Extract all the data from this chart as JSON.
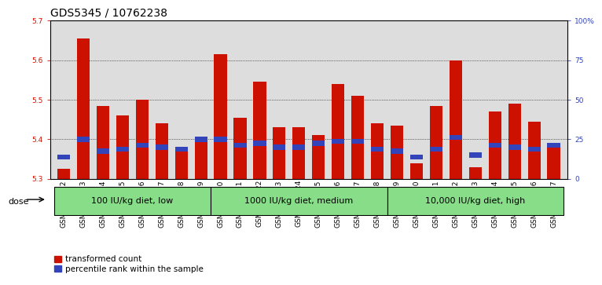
{
  "title": "GDS5345 / 10762238",
  "samples": [
    "GSM1502412",
    "GSM1502413",
    "GSM1502414",
    "GSM1502415",
    "GSM1502416",
    "GSM1502417",
    "GSM1502418",
    "GSM1502419",
    "GSM1502420",
    "GSM1502421",
    "GSM1502422",
    "GSM1502423",
    "GSM1502424",
    "GSM1502425",
    "GSM1502426",
    "GSM1502427",
    "GSM1502428",
    "GSM1502429",
    "GSM1502430",
    "GSM1502431",
    "GSM1502432",
    "GSM1502433",
    "GSM1502434",
    "GSM1502435",
    "GSM1502436",
    "GSM1502437"
  ],
  "red_values": [
    5.325,
    5.655,
    5.485,
    5.46,
    5.5,
    5.44,
    5.38,
    5.395,
    5.615,
    5.455,
    5.545,
    5.43,
    5.43,
    5.41,
    5.54,
    5.51,
    5.44,
    5.435,
    5.34,
    5.485,
    5.6,
    5.33,
    5.47,
    5.49,
    5.445,
    5.385
  ],
  "blue_values": [
    5.355,
    5.4,
    5.37,
    5.375,
    5.385,
    5.38,
    5.375,
    5.4,
    5.4,
    5.385,
    5.39,
    5.38,
    5.38,
    5.39,
    5.395,
    5.395,
    5.375,
    5.37,
    5.355,
    5.375,
    5.405,
    5.36,
    5.385,
    5.38,
    5.375,
    5.385
  ],
  "groups": [
    {
      "label": "100 IU/kg diet, low",
      "start": 0,
      "end": 8
    },
    {
      "label": "1000 IU/kg diet, medium",
      "start": 8,
      "end": 17
    },
    {
      "label": "10,000 IU/kg diet, high",
      "start": 17,
      "end": 26
    }
  ],
  "ymin": 5.3,
  "ymax": 5.7,
  "yticks_left": [
    5.3,
    5.4,
    5.5,
    5.6,
    5.7
  ],
  "yticks_right": [
    0,
    25,
    50,
    75,
    100
  ],
  "bar_color": "#cc1100",
  "blue_color": "#3344bb",
  "bg_color": "#dddddd",
  "group_bg_color": "#88dd88",
  "title_fontsize": 10,
  "tick_fontsize": 6.5,
  "legend_fontsize": 7.5,
  "dose_fontsize": 8,
  "group_label_fontsize": 8,
  "bar_width": 0.65
}
